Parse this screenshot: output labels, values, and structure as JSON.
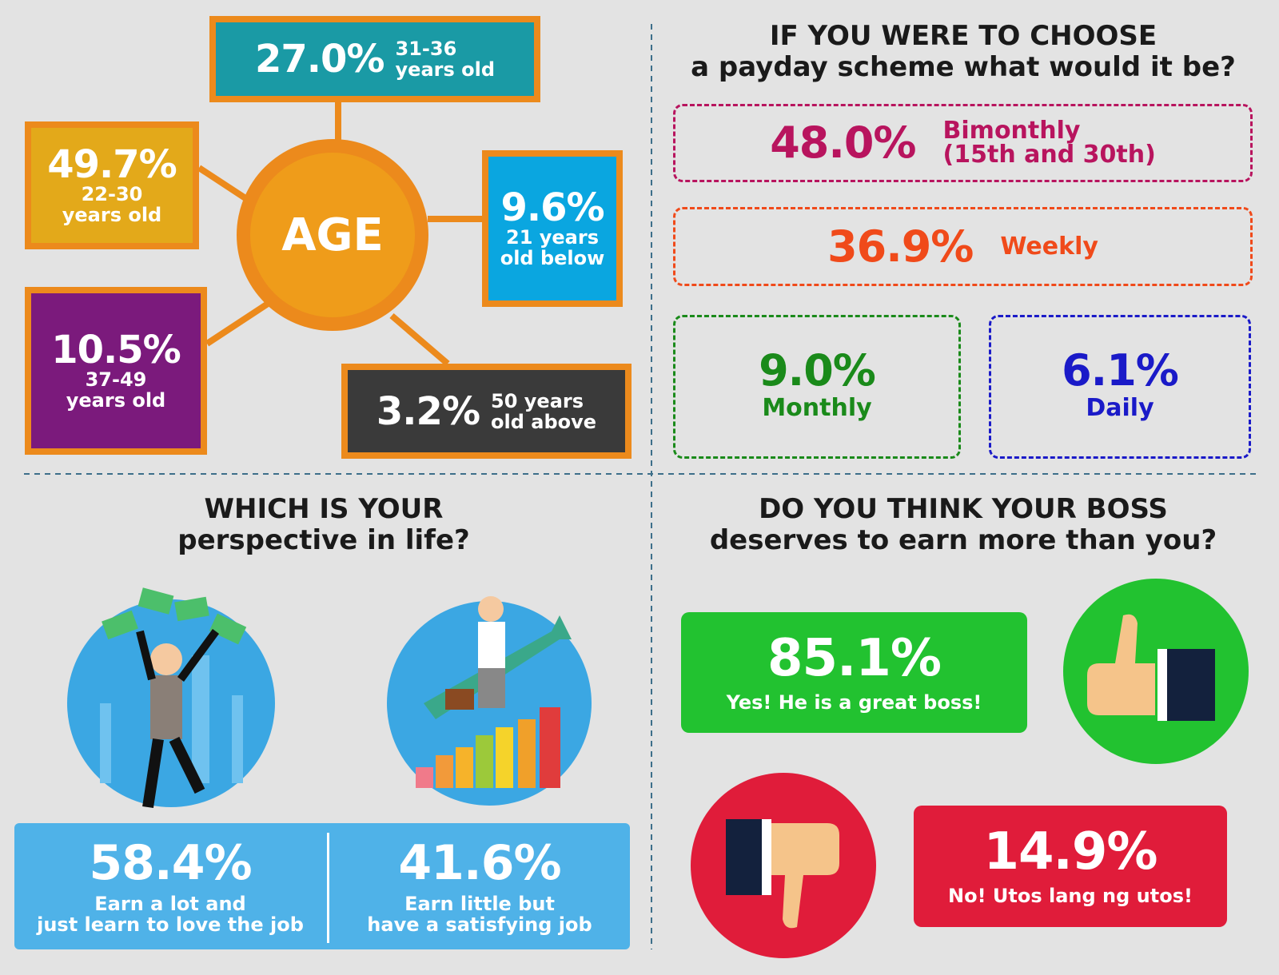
{
  "age": {
    "title": "AGE",
    "groups": [
      {
        "percent": "27.0%",
        "label": [
          "31-36",
          "years old"
        ]
      },
      {
        "percent": "49.7%",
        "label": [
          "22-30",
          "years old"
        ]
      },
      {
        "percent": "9.6%",
        "label": [
          "21 years",
          "old below"
        ]
      },
      {
        "percent": "10.5%",
        "label": [
          "37-49",
          "years old"
        ]
      },
      {
        "percent": "3.2%",
        "label": [
          "50 years",
          "old above"
        ]
      }
    ]
  },
  "payday": {
    "title": [
      "IF YOU WERE TO CHOOSE",
      "a payday scheme what would it be?"
    ],
    "options": [
      {
        "percent": "48.0%",
        "label": [
          "Bimonthly",
          "(15th and 30th)"
        ]
      },
      {
        "percent": "36.9%",
        "label": [
          "Weekly"
        ]
      },
      {
        "percent": "9.0%",
        "label": [
          "Monthly"
        ]
      },
      {
        "percent": "6.1%",
        "label": [
          "Daily"
        ]
      }
    ]
  },
  "perspective": {
    "title": [
      "WHICH IS YOUR",
      "perspective in life?"
    ],
    "options": [
      {
        "percent": "58.4%",
        "label": [
          "Earn a lot and",
          "just learn to love the job"
        ]
      },
      {
        "percent": "41.6%",
        "label": [
          "Earn little but",
          "have a satisfying job"
        ]
      }
    ]
  },
  "boss": {
    "title": [
      "DO YOU THINK YOUR BOSS",
      "deserves to earn more than you?"
    ],
    "options": [
      {
        "percent": "85.1%",
        "label": "Yes! He is a great boss!"
      },
      {
        "percent": "14.9%",
        "label": "No! Utos lang ng utos!"
      }
    ]
  }
}
